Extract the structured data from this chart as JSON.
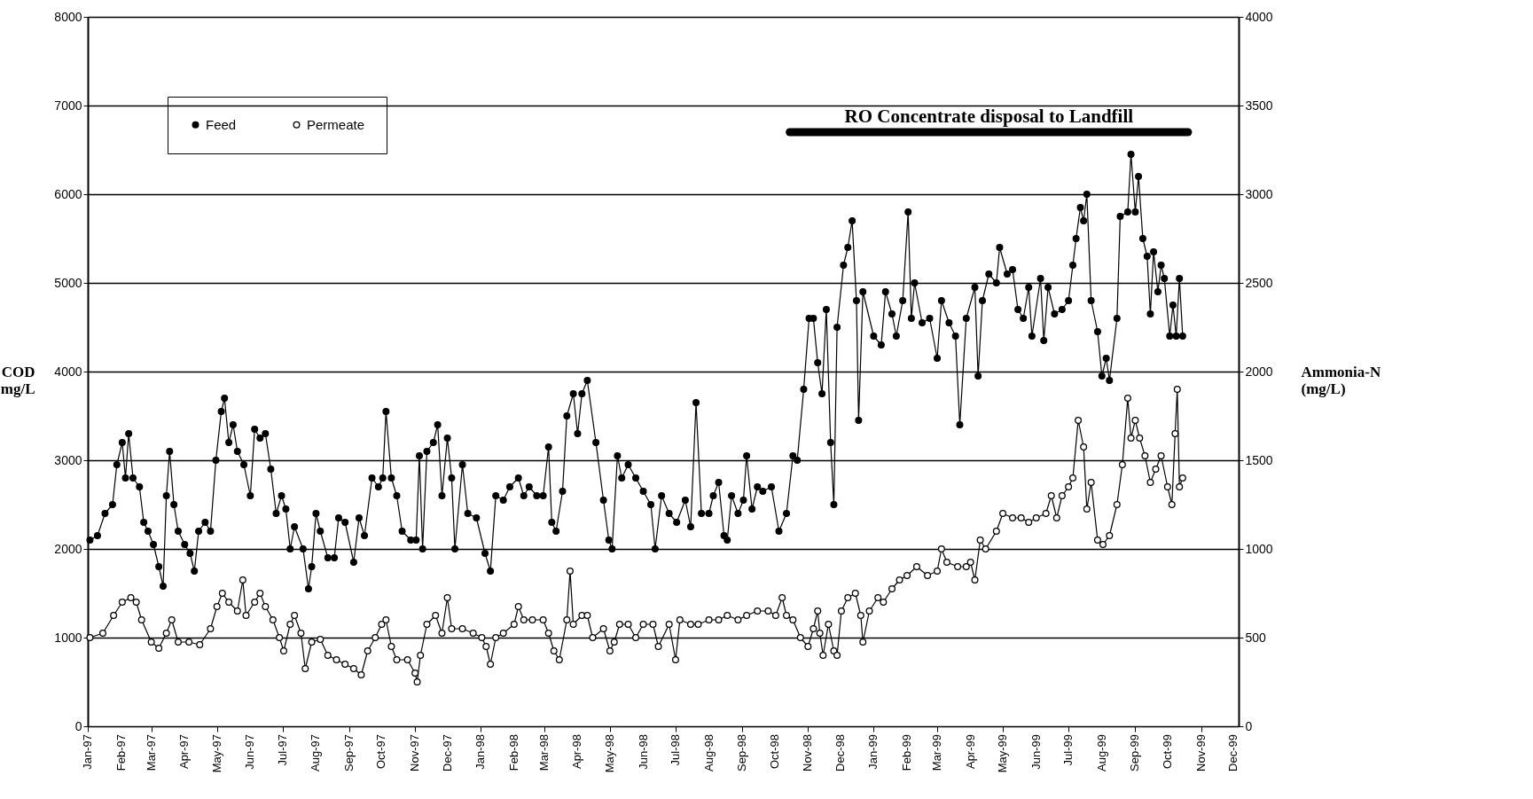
{
  "chart_data": {
    "type": "line",
    "ylabel": "COD mg/L",
    "y2label": "Ammonia-N (mg/L)",
    "marker": "circle",
    "grid": "y",
    "legend": "top left",
    "xlim": [
      "1997-01-01",
      "1999-12-06"
    ],
    "ylim": [
      0,
      8000
    ],
    "yticks": [
      0,
      1000,
      2000,
      3000,
      4000,
      5000,
      6000,
      7000,
      8000
    ],
    "y2lim": [
      0,
      4000
    ],
    "y2ticks": [
      0,
      500,
      1000,
      1500,
      2000,
      2500,
      3000,
      3500,
      4000
    ],
    "xticks": [
      {
        "value": "1997-01-01",
        "label": "Jan-97"
      },
      {
        "value": "1997-02-01",
        "label": "Feb-97"
      },
      {
        "value": "1997-03-01",
        "label": "Mar-97"
      },
      {
        "value": "1997-04-01",
        "label": "Apr-97"
      },
      {
        "value": "1997-05-01",
        "label": "May-97"
      },
      {
        "value": "1997-06-01",
        "label": "Jun-97"
      },
      {
        "value": "1997-07-01",
        "label": "Jul-97"
      },
      {
        "value": "1997-08-01",
        "label": "Aug-97"
      },
      {
        "value": "1997-09-01",
        "label": "Sep-97"
      },
      {
        "value": "1997-10-01",
        "label": "Oct-97"
      },
      {
        "value": "1997-11-01",
        "label": "Nov-97"
      },
      {
        "value": "1997-12-01",
        "label": "Dec-97"
      },
      {
        "value": "1998-01-01",
        "label": "Jan-98"
      },
      {
        "value": "1998-02-01",
        "label": "Feb-98"
      },
      {
        "value": "1998-03-01",
        "label": "Mar-98"
      },
      {
        "value": "1998-04-01",
        "label": "Apr-98"
      },
      {
        "value": "1998-05-01",
        "label": "May-98"
      },
      {
        "value": "1998-06-01",
        "label": "Jun-98"
      },
      {
        "value": "1998-07-01",
        "label": "Jul-98"
      },
      {
        "value": "1998-08-01",
        "label": "Aug-98"
      },
      {
        "value": "1998-09-01",
        "label": "Sep-98"
      },
      {
        "value": "1998-10-01",
        "label": "Oct-98"
      },
      {
        "value": "1998-11-01",
        "label": "Nov-98"
      },
      {
        "value": "1998-12-01",
        "label": "Dec-98"
      },
      {
        "value": "1999-01-01",
        "label": "Jan-99"
      },
      {
        "value": "1999-02-01",
        "label": "Feb-99"
      },
      {
        "value": "1999-03-01",
        "label": "Mar-99"
      },
      {
        "value": "1999-04-01",
        "label": "Apr-99"
      },
      {
        "value": "1999-05-01",
        "label": "May-99"
      },
      {
        "value": "1999-06-01",
        "label": "Jun-99"
      },
      {
        "value": "1999-07-01",
        "label": "Jul-99"
      },
      {
        "value": "1999-08-01",
        "label": "Aug-99"
      },
      {
        "value": "1999-09-01",
        "label": "Sep-99"
      },
      {
        "value": "1999-10-01",
        "label": "Oct-99"
      },
      {
        "value": "1999-11-01",
        "label": "Nov-99"
      },
      {
        "value": "1999-12-01",
        "label": "Dec-99"
      }
    ],
    "series": [
      {
        "name": "RO Concentrate disposal to Landfill",
        "type": "line",
        "marker": "none",
        "color": "#000000",
        "x": [
          "1998-10-15",
          "1999-10-20"
        ],
        "values": [
          6700,
          6700
        ]
      },
      {
        "name": "Feed",
        "color": "#000000",
        "x": [
          "1997-01-03",
          "1997-01-10",
          "1997-01-17",
          "1997-01-24",
          "1997-01-28",
          "1997-02-02",
          "1997-02-05",
          "1997-02-08",
          "1997-02-12",
          "1997-02-18",
          "1997-02-22",
          "1997-02-26",
          "1997-03-03",
          "1997-03-08",
          "1997-03-12",
          "1997-03-15",
          "1997-03-18",
          "1997-03-22",
          "1997-03-26",
          "1997-04-01",
          "1997-04-06",
          "1997-04-10",
          "1997-04-14",
          "1997-04-20",
          "1997-04-25",
          "1997-04-30",
          "1997-05-05",
          "1997-05-08",
          "1997-05-12",
          "1997-05-16",
          "1997-05-20",
          "1997-05-26",
          "1997-06-01",
          "1997-06-05",
          "1997-06-10",
          "1997-06-15",
          "1997-06-20",
          "1997-06-25",
          "1997-06-30",
          "1997-07-04",
          "1997-07-08",
          "1997-07-12",
          "1997-07-20",
          "1997-07-25",
          "1997-07-28",
          "1997-08-01",
          "1997-08-05",
          "1997-08-12",
          "1997-08-18",
          "1997-08-22",
          "1997-08-28",
          "1997-09-05",
          "1997-09-10",
          "1997-09-15",
          "1997-09-22",
          "1997-09-28",
          "1997-10-02",
          "1997-10-05",
          "1997-10-10",
          "1997-10-15",
          "1997-10-20",
          "1997-10-28",
          "1997-11-02",
          "1997-11-05",
          "1997-11-08",
          "1997-11-12",
          "1997-11-18",
          "1997-11-22",
          "1997-11-26",
          "1997-12-01",
          "1997-12-05",
          "1997-12-08",
          "1997-12-15",
          "1997-12-20",
          "1997-12-28",
          "1998-01-05",
          "1998-01-10",
          "1998-01-15",
          "1998-01-22",
          "1998-01-28",
          "1998-02-05",
          "1998-02-10",
          "1998-02-15",
          "1998-02-22",
          "1998-02-28",
          "1998-03-05",
          "1998-03-08",
          "1998-03-12",
          "1998-03-18",
          "1998-03-22",
          "1998-03-28",
          "1998-04-01",
          "1998-04-05",
          "1998-04-10",
          "1998-04-18",
          "1998-04-25",
          "1998-04-30",
          "1998-05-03",
          "1998-05-08",
          "1998-05-12",
          "1998-05-18",
          "1998-05-25",
          "1998-06-01",
          "1998-06-08",
          "1998-06-12",
          "1998-06-18",
          "1998-06-25",
          "1998-07-02",
          "1998-07-10",
          "1998-07-15",
          "1998-07-20",
          "1998-07-25",
          "1998-08-01",
          "1998-08-05",
          "1998-08-10",
          "1998-08-15",
          "1998-08-18",
          "1998-08-22",
          "1998-08-28",
          "1998-09-02",
          "1998-09-05",
          "1998-09-10",
          "1998-09-15",
          "1998-09-20",
          "1998-09-28",
          "1998-10-05",
          "1998-10-12",
          "1998-10-18",
          "1998-10-22",
          "1998-10-28",
          "1998-11-02",
          "1998-11-06",
          "1998-11-10",
          "1998-11-14",
          "1998-11-18",
          "1998-11-22",
          "1998-11-25",
          "1998-11-28",
          "1998-12-04",
          "1998-12-08",
          "1998-12-12",
          "1998-12-16",
          "1998-12-18",
          "1998-12-22",
          "1999-01-01",
          "1999-01-08",
          "1999-01-12",
          "1999-01-18",
          "1999-01-22",
          "1999-01-28",
          "1999-02-02",
          "1999-02-05",
          "1999-02-08",
          "1999-02-15",
          "1999-02-22",
          "1999-03-01",
          "1999-03-05",
          "1999-03-12",
          "1999-03-18",
          "1999-03-22",
          "1999-03-28",
          "1999-04-05",
          "1999-04-08",
          "1999-04-12",
          "1999-04-18",
          "1999-04-25",
          "1999-04-28",
          "1999-05-05",
          "1999-05-10",
          "1999-05-15",
          "1999-05-20",
          "1999-05-25",
          "1999-05-28",
          "1999-06-05",
          "1999-06-08",
          "1999-06-12",
          "1999-06-18",
          "1999-06-25",
          "1999-07-01",
          "1999-07-05",
          "1999-07-08",
          "1999-07-12",
          "1999-07-15",
          "1999-07-18",
          "1999-07-22",
          "1999-07-28",
          "1999-08-01",
          "1999-08-05",
          "1999-08-08",
          "1999-08-15",
          "1999-08-18",
          "1999-08-25",
          "1999-08-28",
          "1999-09-01",
          "1999-09-04",
          "1999-09-08",
          "1999-09-12",
          "1999-09-15",
          "1999-09-18",
          "1999-09-22",
          "1999-09-25",
          "1999-09-28",
          "1999-10-03",
          "1999-10-06",
          "1999-10-09",
          "1999-10-12",
          "1999-10-15"
        ],
        "values": [
          2100,
          2150,
          2400,
          2500,
          2950,
          3200,
          2800,
          3300,
          2800,
          2700,
          2300,
          2200,
          2050,
          1800,
          1580,
          2600,
          3100,
          2500,
          2200,
          2050,
          1950,
          1750,
          2200,
          2300,
          2200,
          3000,
          3550,
          3700,
          3200,
          3400,
          3100,
          2950,
          2600,
          3350,
          3250,
          3300,
          2900,
          2400,
          2600,
          2450,
          2000,
          2250,
          2000,
          1550,
          1800,
          2400,
          2200,
          1900,
          1900,
          2350,
          2300,
          1850,
          2350,
          2150,
          2800,
          2700,
          2800,
          3550,
          2800,
          2600,
          2200,
          2100,
          2100,
          3050,
          2000,
          3100,
          3200,
          3400,
          2600,
          3250,
          2800,
          2000,
          2950,
          2400,
          2350,
          1950,
          1750,
          2600,
          2550,
          2700,
          2800,
          2600,
          2700,
          2600,
          2600,
          3150,
          2300,
          2200,
          2650,
          3500,
          3750,
          3300,
          3750,
          3900,
          3200,
          2550,
          2100,
          2000,
          3050,
          2800,
          2950,
          2800,
          2650,
          2500,
          2000,
          2600,
          2400,
          2300,
          2550,
          2250,
          3650,
          2400,
          2400,
          2600,
          2750,
          2150,
          2100,
          2600,
          2400,
          2550,
          3050,
          2450,
          2700,
          2650,
          2700,
          2200,
          2400,
          3050,
          3000,
          3800,
          4600,
          4600,
          4100,
          3750,
          4700,
          3200,
          2500,
          4500,
          5200,
          5400,
          5700,
          4800,
          3450,
          4900,
          4400,
          4300,
          4900,
          4650,
          4400,
          4800,
          5800,
          4600,
          5000,
          4550,
          4600,
          4150,
          4800,
          4550,
          4400,
          3400,
          4600,
          4950,
          3950,
          4800,
          5100,
          5000,
          5400,
          5100,
          5150,
          4700,
          4600,
          4950,
          4400,
          5050,
          4350,
          4950,
          4650,
          4700,
          4800,
          5200,
          5500,
          5850,
          5700,
          6000,
          4800,
          4450,
          3950,
          4150,
          3900,
          4600,
          5750,
          5800,
          6450,
          5800,
          6200,
          5500,
          5300,
          4650,
          5350,
          4900,
          5200,
          5050,
          4400,
          4750,
          4400,
          5050,
          4400
        ]
      },
      {
        "name": "Permeate",
        "color": "#000000",
        "x": [
          "1997-01-03",
          "1997-01-15",
          "1997-01-25",
          "1997-02-02",
          "1997-02-10",
          "1997-02-15",
          "1997-02-20",
          "1997-03-01",
          "1997-03-08",
          "1997-03-15",
          "1997-03-20",
          "1997-03-26",
          "1997-04-05",
          "1997-04-15",
          "1997-04-25",
          "1997-05-01",
          "1997-05-06",
          "1997-05-12",
          "1997-05-20",
          "1997-05-25",
          "1997-05-28",
          "1997-06-05",
          "1997-06-10",
          "1997-06-15",
          "1997-06-22",
          "1997-06-28",
          "1997-07-02",
          "1997-07-08",
          "1997-07-12",
          "1997-07-18",
          "1997-07-22",
          "1997-07-28",
          "1997-08-05",
          "1997-08-12",
          "1997-08-20",
          "1997-08-28",
          "1997-09-05",
          "1997-09-12",
          "1997-09-18",
          "1997-09-25",
          "1997-10-01",
          "1997-10-05",
          "1997-10-10",
          "1997-10-15",
          "1997-10-25",
          "1997-11-01",
          "1997-11-03",
          "1997-11-06",
          "1997-11-12",
          "1997-11-20",
          "1997-11-26",
          "1997-12-01",
          "1997-12-05",
          "1997-12-15",
          "1997-12-25",
          "1998-01-02",
          "1998-01-06",
          "1998-01-10",
          "1998-01-15",
          "1998-01-22",
          "1998-02-01",
          "1998-02-05",
          "1998-02-10",
          "1998-02-18",
          "1998-02-28",
          "1998-03-05",
          "1998-03-10",
          "1998-03-15",
          "1998-03-22",
          "1998-03-25",
          "1998-03-28",
          "1998-04-05",
          "1998-04-10",
          "1998-04-15",
          "1998-04-25",
          "1998-05-01",
          "1998-05-05",
          "1998-05-10",
          "1998-05-18",
          "1998-05-25",
          "1998-06-01",
          "1998-06-10",
          "1998-06-15",
          "1998-06-25",
          "1998-07-01",
          "1998-07-05",
          "1998-07-15",
          "1998-07-22",
          "1998-08-01",
          "1998-08-10",
          "1998-08-18",
          "1998-08-28",
          "1998-09-05",
          "1998-09-15",
          "1998-09-25",
          "1998-10-02",
          "1998-10-08",
          "1998-10-12",
          "1998-10-18",
          "1998-10-25",
          "1998-11-01",
          "1998-11-06",
          "1998-11-10",
          "1998-11-12",
          "1998-11-15",
          "1998-11-20",
          "1998-11-25",
          "1998-11-28",
          "1998-12-02",
          "1998-12-08",
          "1998-12-15",
          "1998-12-20",
          "1998-12-22",
          "1998-12-28",
          "1999-01-05",
          "1999-01-10",
          "1999-01-18",
          "1999-01-25",
          "1999-02-01",
          "1999-02-10",
          "1999-02-20",
          "1999-03-01",
          "1999-03-05",
          "1999-03-10",
          "1999-03-20",
          "1999-03-28",
          "1999-04-01",
          "1999-04-05",
          "1999-04-10",
          "1999-04-15",
          "1999-04-25",
          "1999-05-01",
          "1999-05-10",
          "1999-05-18",
          "1999-05-25",
          "1999-06-01",
          "1999-06-10",
          "1999-06-15",
          "1999-06-20",
          "1999-06-25",
          "1999-07-01",
          "1999-07-05",
          "1999-07-10",
          "1999-07-15",
          "1999-07-18",
          "1999-07-22",
          "1999-07-28",
          "1999-08-02",
          "1999-08-08",
          "1999-08-15",
          "1999-08-20",
          "1999-08-25",
          "1999-08-28",
          "1999-09-01",
          "1999-09-05",
          "1999-09-10",
          "1999-09-15",
          "1999-09-20",
          "1999-09-25",
          "1999-10-01",
          "1999-10-05",
          "1999-10-08",
          "1999-10-10",
          "1999-10-12",
          "1999-10-15"
        ],
        "values": [
          1000,
          1050,
          1250,
          1400,
          1450,
          1400,
          1200,
          950,
          880,
          1050,
          1200,
          950,
          950,
          920,
          1100,
          1350,
          1500,
          1400,
          1300,
          1650,
          1250,
          1400,
          1500,
          1350,
          1200,
          1000,
          850,
          1150,
          1250,
          1050,
          650,
          950,
          980,
          800,
          750,
          700,
          650,
          580,
          850,
          1000,
          1150,
          1200,
          900,
          750,
          750,
          600,
          500,
          800,
          1150,
          1250,
          1050,
          1450,
          1100,
          1100,
          1050,
          1000,
          900,
          700,
          1000,
          1050,
          1150,
          1350,
          1200,
          1200,
          1200,
          1050,
          850,
          750,
          1200,
          1750,
          1150,
          1250,
          1250,
          1000,
          1100,
          850,
          950,
          1150,
          1150,
          1000,
          1150,
          1150,
          900,
          1150,
          750,
          1200,
          1150,
          1150,
          1200,
          1200,
          1250,
          1200,
          1250,
          1300,
          1300,
          1250,
          1450,
          1250,
          1200,
          1000,
          900,
          1100,
          1300,
          1050,
          800,
          1150,
          850,
          800,
          1300,
          1450,
          1500,
          1250,
          950,
          1300,
          1450,
          1400,
          1550,
          1650,
          1700,
          1800,
          1700,
          1750,
          2000,
          1850,
          1800,
          1800,
          1850,
          1650,
          2100,
          2000,
          2200,
          2400,
          2350,
          2350,
          2300,
          2350,
          2400,
          2600,
          2350,
          2600,
          2700,
          2800,
          3450,
          3150,
          2450,
          2750,
          2100,
          2050,
          2150,
          2500,
          2950,
          3700,
          3250,
          3450,
          3250,
          3050,
          2750,
          2900,
          3050,
          2700,
          2500,
          3300,
          3800,
          2700,
          2800
        ]
      }
    ]
  }
}
